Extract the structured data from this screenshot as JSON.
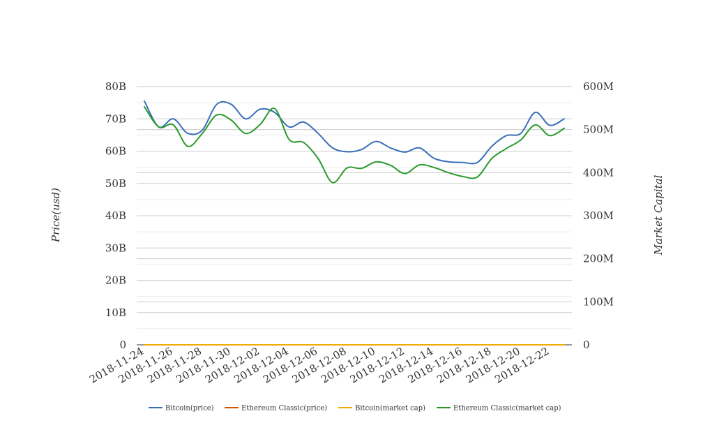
{
  "chart_data": {
    "type": "line",
    "x": [
      "2018-11-24",
      "2018-11-25",
      "2018-11-26",
      "2018-11-27",
      "2018-11-28",
      "2018-11-29",
      "2018-11-30",
      "2018-12-01",
      "2018-12-02",
      "2018-12-03",
      "2018-12-04",
      "2018-12-05",
      "2018-12-06",
      "2018-12-07",
      "2018-12-08",
      "2018-12-09",
      "2018-12-10",
      "2018-12-11",
      "2018-12-12",
      "2018-12-13",
      "2018-12-14",
      "2018-12-15",
      "2018-12-16",
      "2018-12-17",
      "2018-12-18",
      "2018-12-19",
      "2018-12-20",
      "2018-12-21",
      "2018-12-22",
      "2018-12-23"
    ],
    "x_tick_labels": [
      "2018-11-24",
      "2018-11-26",
      "2018-11-28",
      "2018-11-30",
      "2018-12-02",
      "2018-12-04",
      "2018-12-06",
      "2018-12-08",
      "2018-12-10",
      "2018-12-12",
      "2018-12-14",
      "2018-12-16",
      "2018-12-18",
      "2018-12-20",
      "2018-12-22"
    ],
    "ylabel_left": "Price(usd)",
    "ylabel_right": "Market Capital",
    "ylim_left": [
      0,
      80000000000
    ],
    "ylim_right": [
      0,
      600000000
    ],
    "yticks_left": [
      {
        "v": 0,
        "label": "0"
      },
      {
        "v": 10000000000,
        "label": "10B"
      },
      {
        "v": 20000000000,
        "label": "20B"
      },
      {
        "v": 30000000000,
        "label": "30B"
      },
      {
        "v": 40000000000,
        "label": "40B"
      },
      {
        "v": 50000000000,
        "label": "50B"
      },
      {
        "v": 60000000000,
        "label": "60B"
      },
      {
        "v": 70000000000,
        "label": "70B"
      },
      {
        "v": 80000000000,
        "label": "80B"
      }
    ],
    "yticks_right": [
      {
        "v": 0,
        "label": "0"
      },
      {
        "v": 100000000,
        "label": "100M"
      },
      {
        "v": 200000000,
        "label": "200M"
      },
      {
        "v": 300000000,
        "label": "300M"
      },
      {
        "v": 400000000,
        "label": "400M"
      },
      {
        "v": 500000000,
        "label": "500M"
      },
      {
        "v": 600000000,
        "label": "600M"
      }
    ],
    "grid": true,
    "legend_position": "bottom",
    "series": [
      {
        "name": "Bitcoin(price)",
        "axis": "left",
        "color": "#3a6fba",
        "values": [
          75500000000,
          67500000000,
          70000000000,
          65500000000,
          66500000000,
          74500000000,
          74500000000,
          70000000000,
          73000000000,
          72000000000,
          67500000000,
          69000000000,
          65500000000,
          61000000000,
          59800000000,
          60500000000,
          63000000000,
          61000000000,
          59700000000,
          61000000000,
          57800000000,
          56700000000,
          56500000000,
          56500000000,
          61500000000,
          64800000000,
          65500000000,
          72000000000,
          68000000000,
          70000000000
        ]
      },
      {
        "name": "Ethereum Classic(price)",
        "axis": "left",
        "color": "#d35400",
        "values": [
          4.3,
          4.1,
          4.0,
          3.8,
          3.9,
          4.6,
          4.5,
          4.2,
          4.5,
          4.6,
          4.0,
          4.0,
          3.7,
          3.2,
          3.6,
          3.5,
          3.6,
          3.5,
          3.3,
          3.5,
          3.4,
          3.3,
          3.2,
          3.2,
          3.6,
          3.9,
          4.1,
          4.6,
          4.3,
          4.5
        ]
      },
      {
        "name": "Bitcoin(market cap)",
        "axis": "right",
        "color": "#f2a900",
        "values": [
          3900,
          3800,
          3900,
          3700,
          3800,
          4200,
          4200,
          4000,
          4100,
          4100,
          3900,
          3900,
          3700,
          3400,
          3500,
          3500,
          3600,
          3500,
          3400,
          3500,
          3300,
          3200,
          3200,
          3200,
          3600,
          3800,
          3900,
          4200,
          3900,
          4000
        ]
      },
      {
        "name": "Ethereum Classic(market cap)",
        "axis": "right",
        "color": "#2b9a2b",
        "values": [
          553000000,
          506000000,
          511000000,
          461000000,
          491000000,
          534000000,
          522000000,
          491000000,
          512000000,
          549000000,
          477000000,
          470000000,
          433000000,
          377000000,
          411000000,
          410000000,
          425000000,
          417000000,
          398000000,
          418000000,
          412000000,
          400000000,
          391000000,
          390000000,
          433000000,
          456000000,
          476000000,
          511000000,
          486000000,
          503000000
        ]
      }
    ]
  }
}
